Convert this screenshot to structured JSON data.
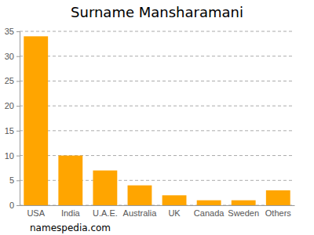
{
  "chart_data": {
    "type": "bar",
    "title": "Surname Mansharamani",
    "categories": [
      "USA",
      "India",
      "U.A.E.",
      "Australia",
      "UK",
      "Canada",
      "Sweden",
      "Others"
    ],
    "values": [
      34,
      10,
      7,
      4,
      2,
      1,
      1,
      3
    ],
    "color": "#ffa500",
    "ylim": [
      0,
      35
    ],
    "yticks": [
      0,
      5,
      10,
      15,
      20,
      25,
      30,
      35
    ],
    "grid": true,
    "source": "namespedia.com"
  }
}
